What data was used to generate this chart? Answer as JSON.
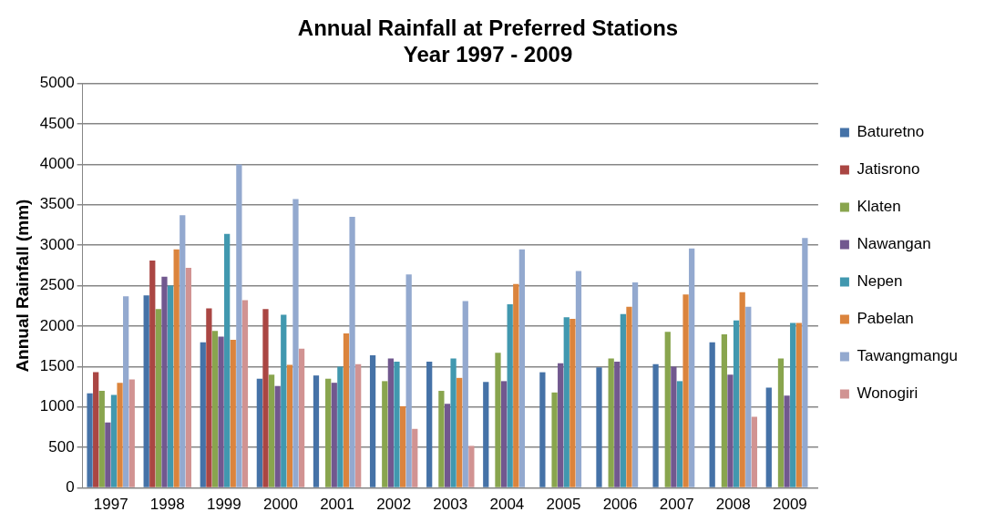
{
  "chart_data": {
    "type": "bar",
    "title": [
      "Annual Rainfall at Preferred Stations",
      "Year 1997 - 2009"
    ],
    "ylabel": "Annual Rainfall (mm)",
    "categories": [
      "1997",
      "1998",
      "1999",
      "2000",
      "2001",
      "2002",
      "2003",
      "2004",
      "2005",
      "2006",
      "2007",
      "2008",
      "2009"
    ],
    "series": [
      {
        "name": "Baturetno",
        "color": "#4572a7",
        "values": [
          1170,
          2380,
          1800,
          1350,
          1390,
          1640,
          1560,
          1310,
          1430,
          1490,
          1530,
          1800,
          1240
        ]
      },
      {
        "name": "Jatisrono",
        "color": "#aa4643",
        "values": [
          1430,
          2810,
          2220,
          2210,
          null,
          null,
          null,
          null,
          null,
          null,
          null,
          null,
          null
        ]
      },
      {
        "name": "Klaten",
        "color": "#89a54e",
        "values": [
          1200,
          2210,
          1940,
          1400,
          1350,
          1320,
          1200,
          1670,
          1180,
          1600,
          1930,
          1900,
          1600
        ]
      },
      {
        "name": "Nawangan",
        "color": "#71588f",
        "values": [
          810,
          2610,
          1870,
          1260,
          1300,
          1600,
          1040,
          1320,
          1540,
          1560,
          1500,
          1400,
          1140
        ]
      },
      {
        "name": "Nepen",
        "color": "#4198af",
        "values": [
          1150,
          2500,
          3140,
          2140,
          1500,
          1560,
          1600,
          2270,
          2110,
          2150,
          1320,
          2070,
          2040
        ]
      },
      {
        "name": "Pabelan",
        "color": "#db843d",
        "values": [
          1300,
          2950,
          1830,
          1520,
          1910,
          1010,
          1360,
          2520,
          2090,
          2240,
          2390,
          2420,
          2040
        ]
      },
      {
        "name": "Tawangmangu",
        "color": "#93a9cf",
        "values": [
          2370,
          3370,
          4000,
          3570,
          3350,
          2640,
          2310,
          2950,
          2680,
          2540,
          2960,
          2240,
          3090
        ]
      },
      {
        "name": "Wonogiri",
        "color": "#d19392",
        "values": [
          1340,
          2720,
          2320,
          1720,
          1530,
          730,
          520,
          null,
          null,
          null,
          null,
          880,
          null
        ]
      }
    ],
    "ylim": [
      0,
      5000
    ],
    "yticks": [
      0,
      500,
      1000,
      1500,
      2000,
      2500,
      3000,
      3500,
      4000,
      4500,
      5000
    ],
    "grid": "y",
    "legend": "right"
  }
}
